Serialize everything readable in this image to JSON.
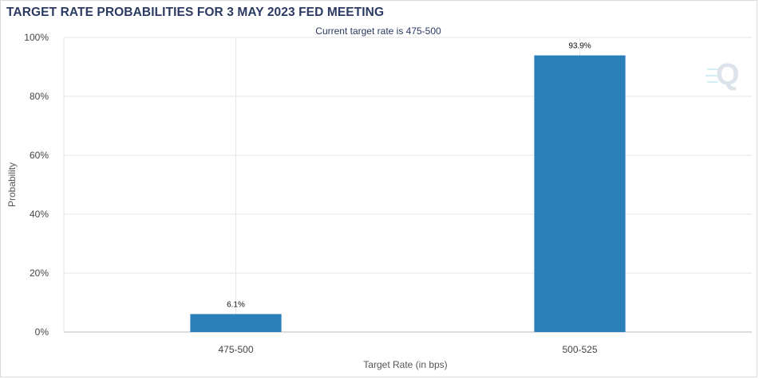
{
  "chart_data": {
    "type": "bar",
    "title": "TARGET RATE PROBABILITIES FOR 3 MAY 2023 FED MEETING",
    "subtitle": "Current target rate is 475-500",
    "xlabel": "Target Rate (in bps)",
    "ylabel": "Probability",
    "categories": [
      "475-500",
      "500-525"
    ],
    "values": [
      6.1,
      93.9
    ],
    "data_labels": [
      "6.1%",
      "93.9%"
    ],
    "ylim": [
      0,
      100
    ],
    "yticks": [
      {
        "value": 0,
        "label": "0%"
      },
      {
        "value": 20,
        "label": "20%"
      },
      {
        "value": 40,
        "label": "40%"
      },
      {
        "value": 60,
        "label": "60%"
      },
      {
        "value": 80,
        "label": "80%"
      },
      {
        "value": 100,
        "label": "100%"
      }
    ],
    "grid": true,
    "bar_color": "#2a7fba",
    "logo": "Q"
  }
}
